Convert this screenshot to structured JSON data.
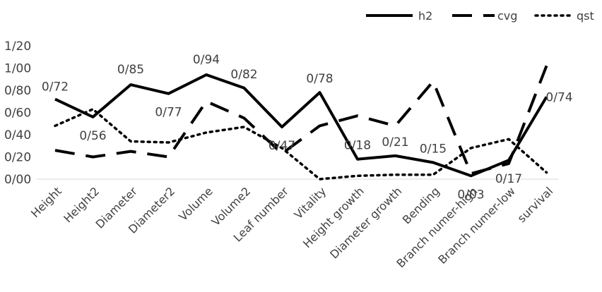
{
  "chart_data": {
    "type": "line",
    "categories": [
      "Height",
      "Height2",
      "Diameter",
      "Diameter2",
      "Volume",
      "Volume2",
      "Leaf number",
      "Vitality",
      "Height growth",
      "Diameter growth",
      "Bending",
      "Branch numer-high",
      "Branch numer-low",
      "survival"
    ],
    "y_ticks": [
      "0/00",
      "0/20",
      "0/40",
      "0/60",
      "0/80",
      "1/00",
      "1/20"
    ],
    "ylim": [
      0,
      1.2
    ],
    "grid": false,
    "legend_position": "top-right",
    "series": [
      {
        "name": "h2",
        "style": "solid",
        "color": "#000000",
        "values": [
          0.72,
          0.56,
          0.85,
          0.77,
          0.94,
          0.82,
          0.47,
          0.78,
          0.18,
          0.21,
          0.15,
          0.03,
          0.17,
          0.74
        ],
        "labels": [
          "0/72",
          "0/56",
          "0/85",
          "0/77",
          "0/94",
          "0/82",
          "0/47",
          "0/78",
          "0/18",
          "0/21",
          "0/15",
          "0/03",
          "0/17",
          "0/74"
        ]
      },
      {
        "name": "cvg",
        "style": "dashed",
        "color": "#000000",
        "values": [
          0.26,
          0.2,
          0.25,
          0.2,
          0.7,
          0.55,
          0.23,
          0.48,
          0.57,
          0.48,
          0.88,
          0.05,
          0.14,
          1.02
        ]
      },
      {
        "name": "qst",
        "style": "dotted",
        "color": "#000000",
        "values": [
          0.48,
          0.63,
          0.34,
          0.33,
          0.42,
          0.47,
          0.28,
          0.0,
          0.03,
          0.04,
          0.04,
          0.28,
          0.36,
          0.06
        ]
      }
    ]
  }
}
